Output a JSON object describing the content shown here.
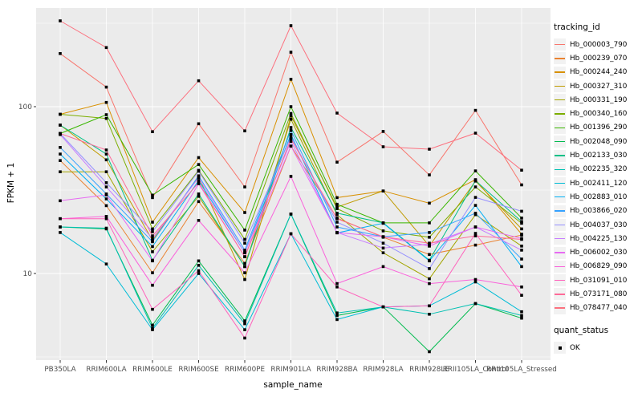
{
  "chart_data": {
    "type": "line",
    "title": "",
    "xlabel": "sample_name",
    "ylabel": "FPKM + 1",
    "yscale": "log10",
    "yticks": [
      10,
      100
    ],
    "minor_ticks": [
      3.162,
      31.623,
      316.228
    ],
    "ylim": [
      3.0,
      400
    ],
    "grid": true,
    "legend_position": "right",
    "panel_bg": "#EBEBEB",
    "grid_color": "#FFFFFF",
    "axis_text_color": "#4D4D4D",
    "tick_color": "#333333",
    "point_color": "#000000",
    "categories": [
      "PB350LA",
      "RRIM600LA",
      "RRIM600LE",
      "RRIM600SE",
      "RRIM600PE",
      "RRIM901LA",
      "RRIM928BA",
      "RRIM928LA",
      "RRIM928LE",
      "RRII105LA_Control",
      "RRII105LA_Stressed"
    ],
    "legend": {
      "color_title": "tracking_id",
      "shape_title": "quant_status",
      "shape_items": [
        {
          "label": "OK",
          "marker": "black-square"
        }
      ]
    },
    "series": [
      {
        "name": "Hb_000003_790",
        "color": "#F8766D",
        "values": [
          208,
          131,
          28.5,
          79,
          33,
          212,
          46.5,
          71,
          39,
          95,
          34
        ]
      },
      {
        "name": "Hb_000239_070",
        "color": "#EA8331",
        "values": [
          47.5,
          25.5,
          10.1,
          27,
          11.5,
          58,
          21.5,
          16.5,
          13,
          14.8,
          17
        ]
      },
      {
        "name": "Hb_000244_240",
        "color": "#D89000",
        "values": [
          90,
          106,
          20.3,
          49.5,
          23.2,
          146,
          28.5,
          31.2,
          26.4,
          36.5,
          17.2
        ]
      },
      {
        "name": "Hb_000327_310",
        "color": "#C09B00",
        "values": [
          77.5,
          48,
          15.8,
          38,
          9.2,
          88,
          25,
          31.2,
          14.6,
          35.8,
          18.5
        ]
      },
      {
        "name": "Hb_000331_190",
        "color": "#A3A500",
        "values": [
          40.7,
          40.7,
          13.5,
          29,
          11,
          84,
          22.5,
          13.3,
          9.3,
          22.5,
          14.6
        ]
      },
      {
        "name": "Hb_000340_160",
        "color": "#7CAE00",
        "values": [
          90,
          85,
          18.5,
          41.5,
          16,
          91,
          24.5,
          18,
          16.5,
          33,
          20
        ]
      },
      {
        "name": "Hb_001396_290",
        "color": "#39B600",
        "values": [
          69,
          89.5,
          29.5,
          45,
          18.2,
          100,
          26,
          20.1,
          20.1,
          41.2,
          21.5
        ]
      },
      {
        "name": "Hb_002048_090",
        "color": "#00BB4E",
        "values": [
          19,
          18.5,
          4.9,
          11.9,
          5.2,
          22.7,
          5.6,
          6.3,
          3.4,
          6.6,
          5.4
        ]
      },
      {
        "name": "Hb_002133_030",
        "color": "#00C087",
        "values": [
          77.5,
          52,
          12,
          30,
          11,
          75,
          23,
          20.1,
          12,
          36,
          20.5
        ]
      },
      {
        "name": "Hb_002235_320",
        "color": "#00C0B2",
        "values": [
          19,
          18.7,
          4.7,
          11.2,
          5.0,
          22.7,
          5.8,
          6.3,
          5.7,
          6.6,
          5.6
        ]
      },
      {
        "name": "Hb_002411_120",
        "color": "#00BCD6",
        "values": [
          17.6,
          11.4,
          4.6,
          10,
          4.6,
          17.3,
          5.3,
          6.3,
          6.4,
          8.9,
          5.9
        ]
      },
      {
        "name": "Hb_002883_010",
        "color": "#00B0F6",
        "values": [
          52,
          28,
          14.5,
          36,
          13.3,
          68,
          17.5,
          20,
          11.9,
          25.6,
          11
        ]
      },
      {
        "name": "Hb_003866_020",
        "color": "#35A2FF",
        "values": [
          57,
          30,
          15.5,
          38.5,
          13.8,
          72,
          19,
          16.6,
          17.6,
          23,
          12.2
        ]
      },
      {
        "name": "Hb_004037_030",
        "color": "#9590FF",
        "values": [
          69,
          35,
          17.8,
          41,
          15.2,
          66,
          20.3,
          15.2,
          10.7,
          28.6,
          23.6
        ]
      },
      {
        "name": "Hb_004225_130",
        "color": "#C77CFF",
        "values": [
          68,
          33,
          16.2,
          37.5,
          13.3,
          62,
          17.6,
          14.2,
          15,
          19,
          13.8
        ]
      },
      {
        "name": "Hb_006002_030",
        "color": "#E76BF3",
        "values": [
          27.3,
          29.6,
          11.9,
          34.5,
          12.6,
          58,
          17.6,
          16.6,
          14.6,
          19,
          16.2
        ]
      },
      {
        "name": "Hb_006829_090",
        "color": "#FA62DB",
        "values": [
          21.3,
          22,
          8.5,
          20.8,
          10.1,
          38.2,
          8.7,
          11,
          8.7,
          9.2,
          8.3
        ]
      },
      {
        "name": "Hb_031091_010",
        "color": "#FF62BC",
        "values": [
          21.3,
          21.3,
          6.1,
          10.4,
          4.1,
          17.3,
          8.3,
          6.3,
          6.4,
          17.4,
          7.4
        ]
      },
      {
        "name": "Hb_073171_080",
        "color": "#FF6A98",
        "values": [
          69,
          55,
          16.8,
          35,
          12.6,
          64,
          21.3,
          16.6,
          15.2,
          16.8,
          16
        ]
      },
      {
        "name": "Hb_078477_040",
        "color": "#FC717F",
        "values": [
          327,
          226,
          70.8,
          143,
          71.6,
          306,
          91.5,
          57.5,
          55.6,
          69.4,
          41.6
        ]
      }
    ]
  }
}
